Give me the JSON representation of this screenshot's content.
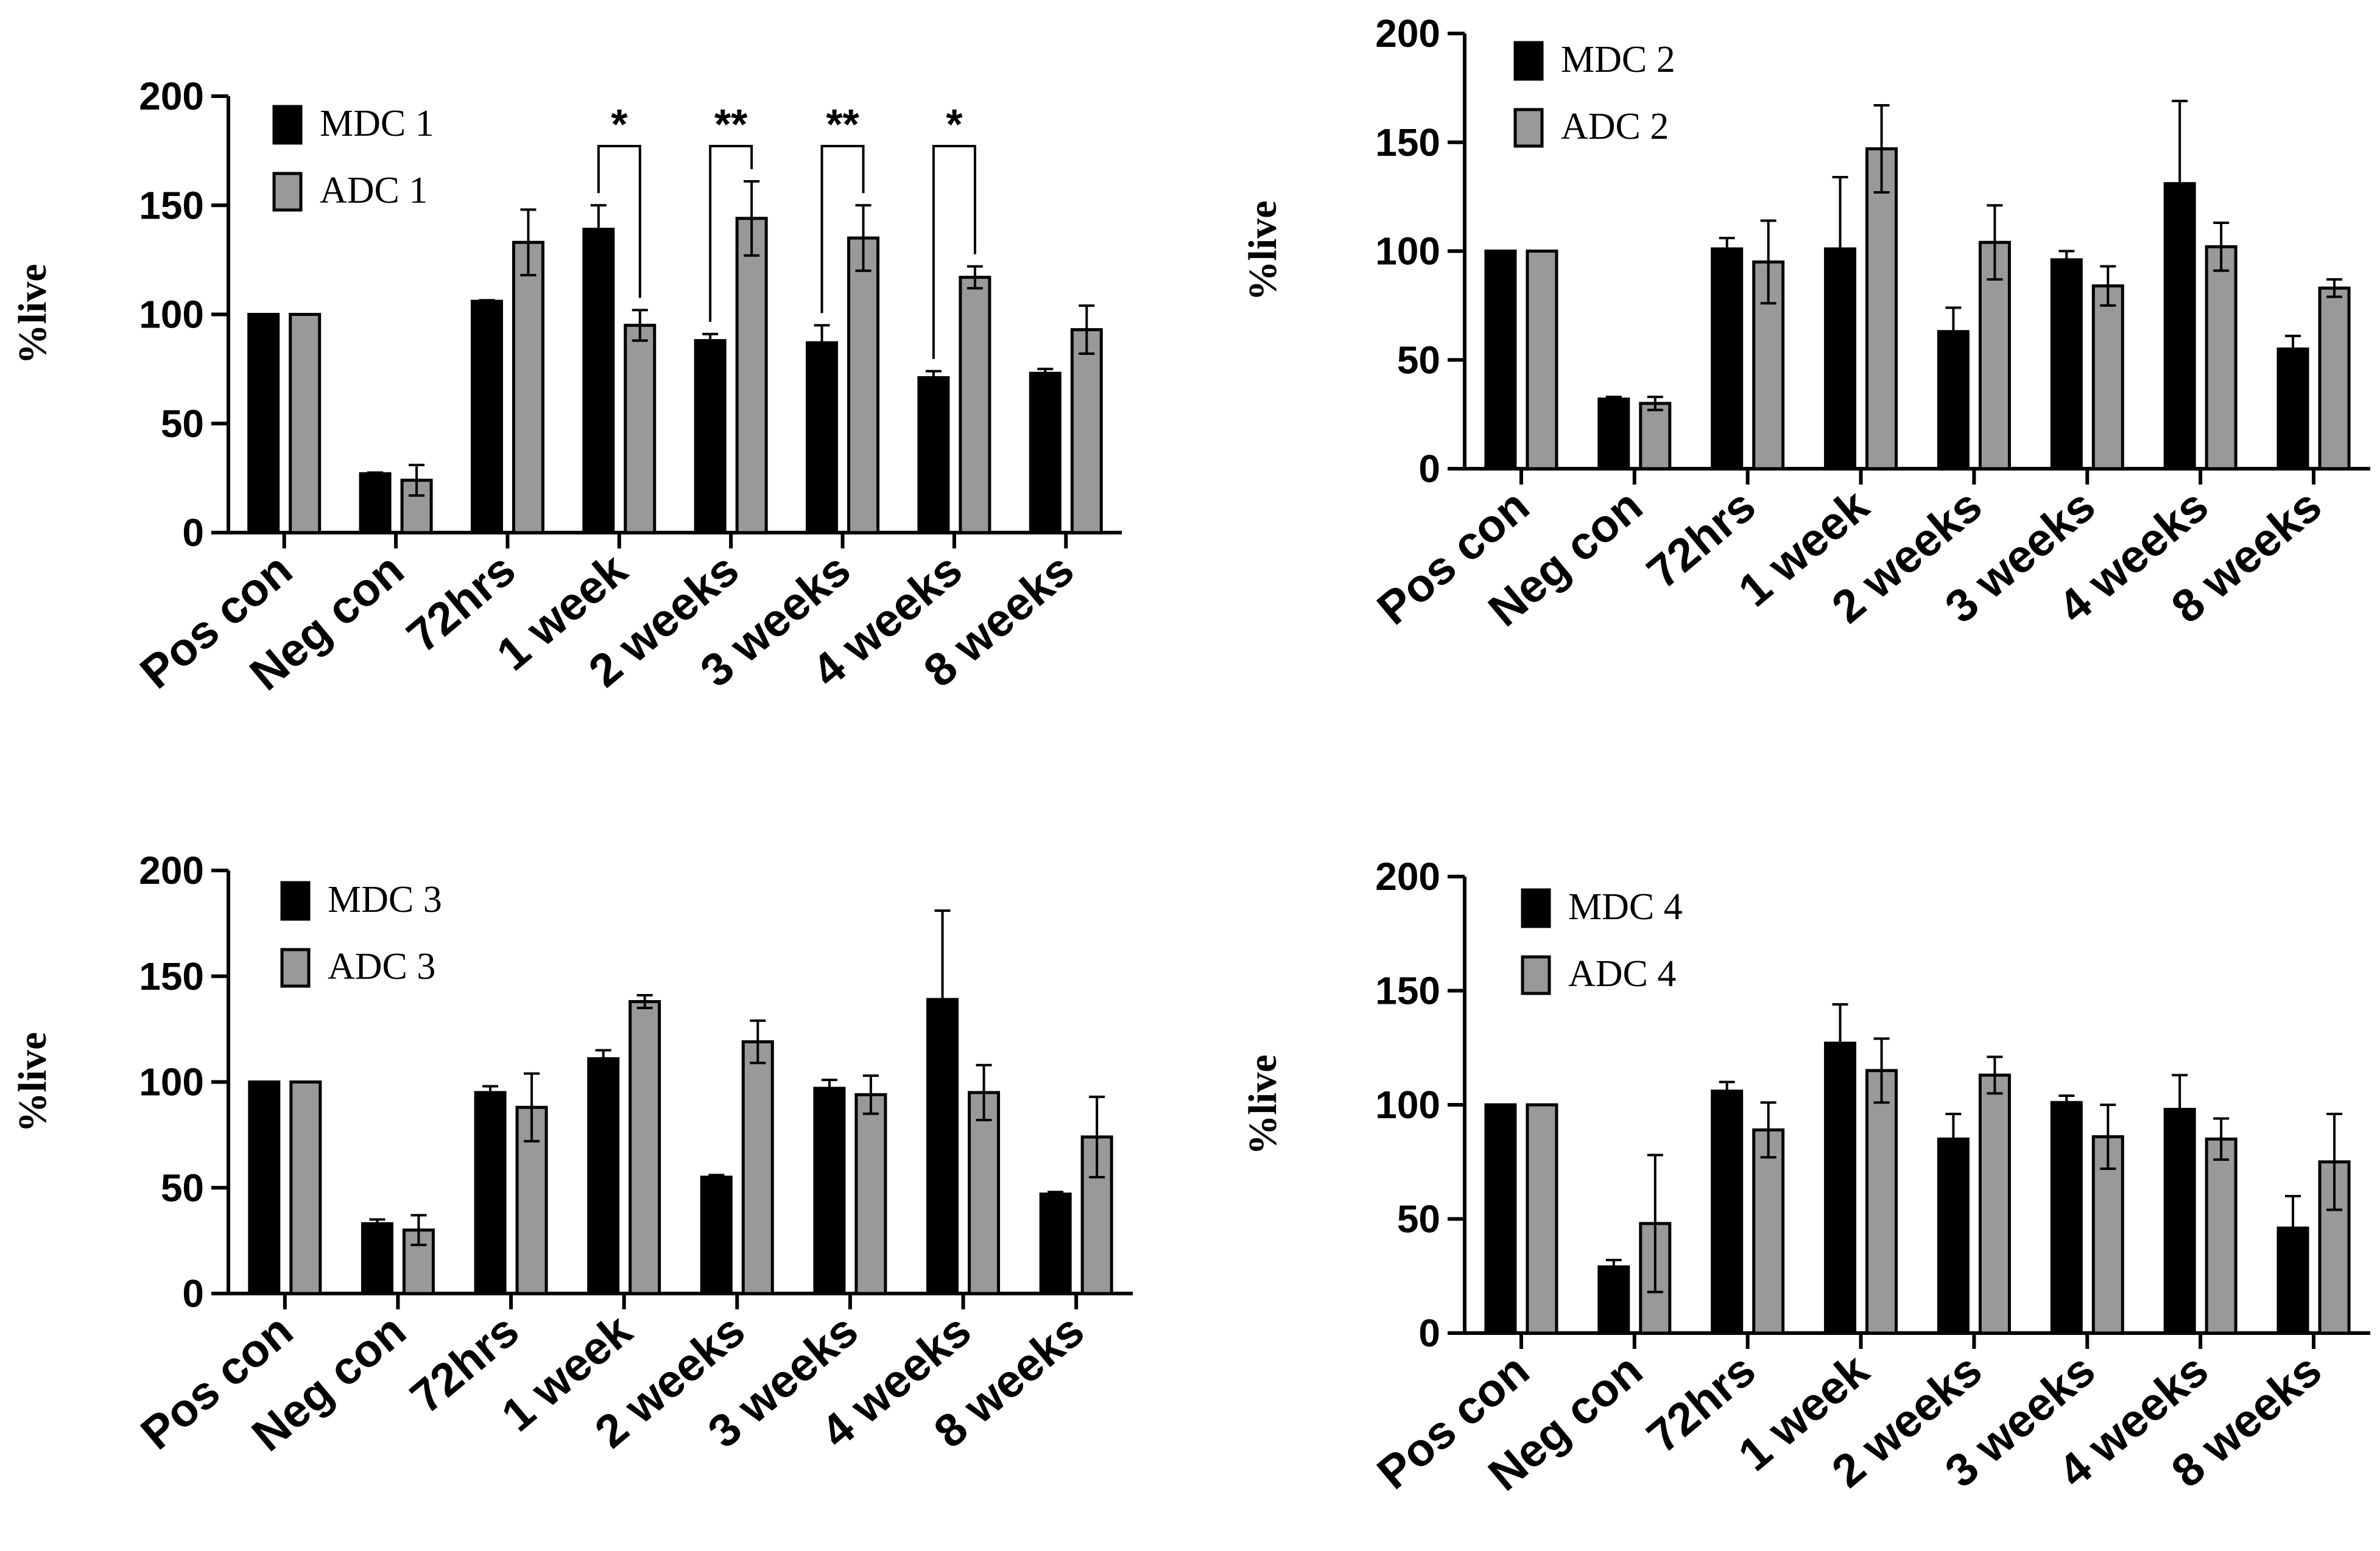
{
  "chart_data": [
    {
      "type": "bar",
      "ylabel": "%live",
      "xlabel": "",
      "ylim": [
        0,
        200
      ],
      "yticks": [
        0,
        50,
        100,
        150,
        200
      ],
      "legend_position": "top-left",
      "categories": [
        "Pos con",
        "Neg con",
        "72hrs",
        "1 week",
        "2 weeks",
        "3 weeks",
        "4 weeks",
        "8 weeks"
      ],
      "series": [
        {
          "name": "MDC 1",
          "color": "#000000",
          "values": [
            100,
            27,
            106,
            139,
            88,
            87,
            71,
            73
          ],
          "errors": [
            0,
            0.5,
            0.5,
            11,
            3,
            8,
            3,
            2
          ]
        },
        {
          "name": "ADC 1",
          "color": "#999999",
          "values": [
            100,
            24,
            133,
            95,
            144,
            135,
            117,
            93
          ],
          "errors": [
            0,
            7,
            15,
            7,
            17,
            15,
            5,
            11
          ]
        }
      ],
      "significance": [
        {
          "category": "1 week",
          "label": "*"
        },
        {
          "category": "2 weeks",
          "label": "**"
        },
        {
          "category": "3 weeks",
          "label": "**"
        },
        {
          "category": "4 weeks",
          "label": "*"
        }
      ]
    },
    {
      "type": "bar",
      "ylabel": "%live",
      "xlabel": "",
      "ylim": [
        0,
        200
      ],
      "yticks": [
        0,
        50,
        100,
        150,
        200
      ],
      "legend_position": "top-left",
      "categories": [
        "Pos con",
        "Neg con",
        "72hrs",
        "1 week",
        "2 weeks",
        "3 weeks",
        "4 weeks",
        "8 weeks"
      ],
      "series": [
        {
          "name": "MDC 2",
          "color": "#000000",
          "values": [
            100,
            32,
            101,
            101,
            63,
            96,
            131,
            55
          ],
          "errors": [
            0,
            1,
            5,
            33,
            11,
            4,
            38,
            6
          ]
        },
        {
          "name": "ADC 2",
          "color": "#999999",
          "values": [
            100,
            30,
            95,
            147,
            104,
            84,
            102,
            83
          ],
          "errors": [
            0,
            3,
            19,
            20,
            17,
            9,
            11,
            4
          ]
        }
      ],
      "significance": []
    },
    {
      "type": "bar",
      "ylabel": "%live",
      "xlabel": "",
      "ylim": [
        0,
        200
      ],
      "yticks": [
        0,
        50,
        100,
        150,
        200
      ],
      "legend_position": "top-left",
      "categories": [
        "Pos con",
        "Neg con",
        "72hrs",
        "1 week",
        "2 weeks",
        "3 weeks",
        "4 weeks",
        "8 weeks"
      ],
      "series": [
        {
          "name": "MDC 3",
          "color": "#000000",
          "values": [
            100,
            33,
            95,
            111,
            55,
            97,
            139,
            47
          ],
          "errors": [
            0,
            2,
            3,
            4,
            1,
            4,
            42,
            1
          ]
        },
        {
          "name": "ADC 3",
          "color": "#999999",
          "values": [
            100,
            30,
            88,
            138,
            119,
            94,
            95,
            74
          ],
          "errors": [
            0,
            7,
            16,
            3,
            10,
            9,
            13,
            19
          ]
        }
      ],
      "significance": []
    },
    {
      "type": "bar",
      "ylabel": "%live",
      "xlabel": "",
      "ylim": [
        0,
        200
      ],
      "yticks": [
        0,
        50,
        100,
        150,
        200
      ],
      "legend_position": "top-left",
      "categories": [
        "Pos con",
        "Neg con",
        "72hrs",
        "1 week",
        "2 weeks",
        "3 weeks",
        "4 weeks",
        "8 weeks"
      ],
      "series": [
        {
          "name": "MDC 4",
          "color": "#000000",
          "values": [
            100,
            29,
            106,
            127,
            85,
            101,
            98,
            46
          ],
          "errors": [
            0,
            3,
            4,
            17,
            11,
            3,
            15,
            14
          ]
        },
        {
          "name": "ADC 4",
          "color": "#999999",
          "values": [
            100,
            48,
            89,
            115,
            113,
            86,
            85,
            75
          ],
          "errors": [
            0,
            30,
            12,
            14,
            8,
            14,
            9,
            21
          ]
        }
      ],
      "significance": []
    }
  ]
}
